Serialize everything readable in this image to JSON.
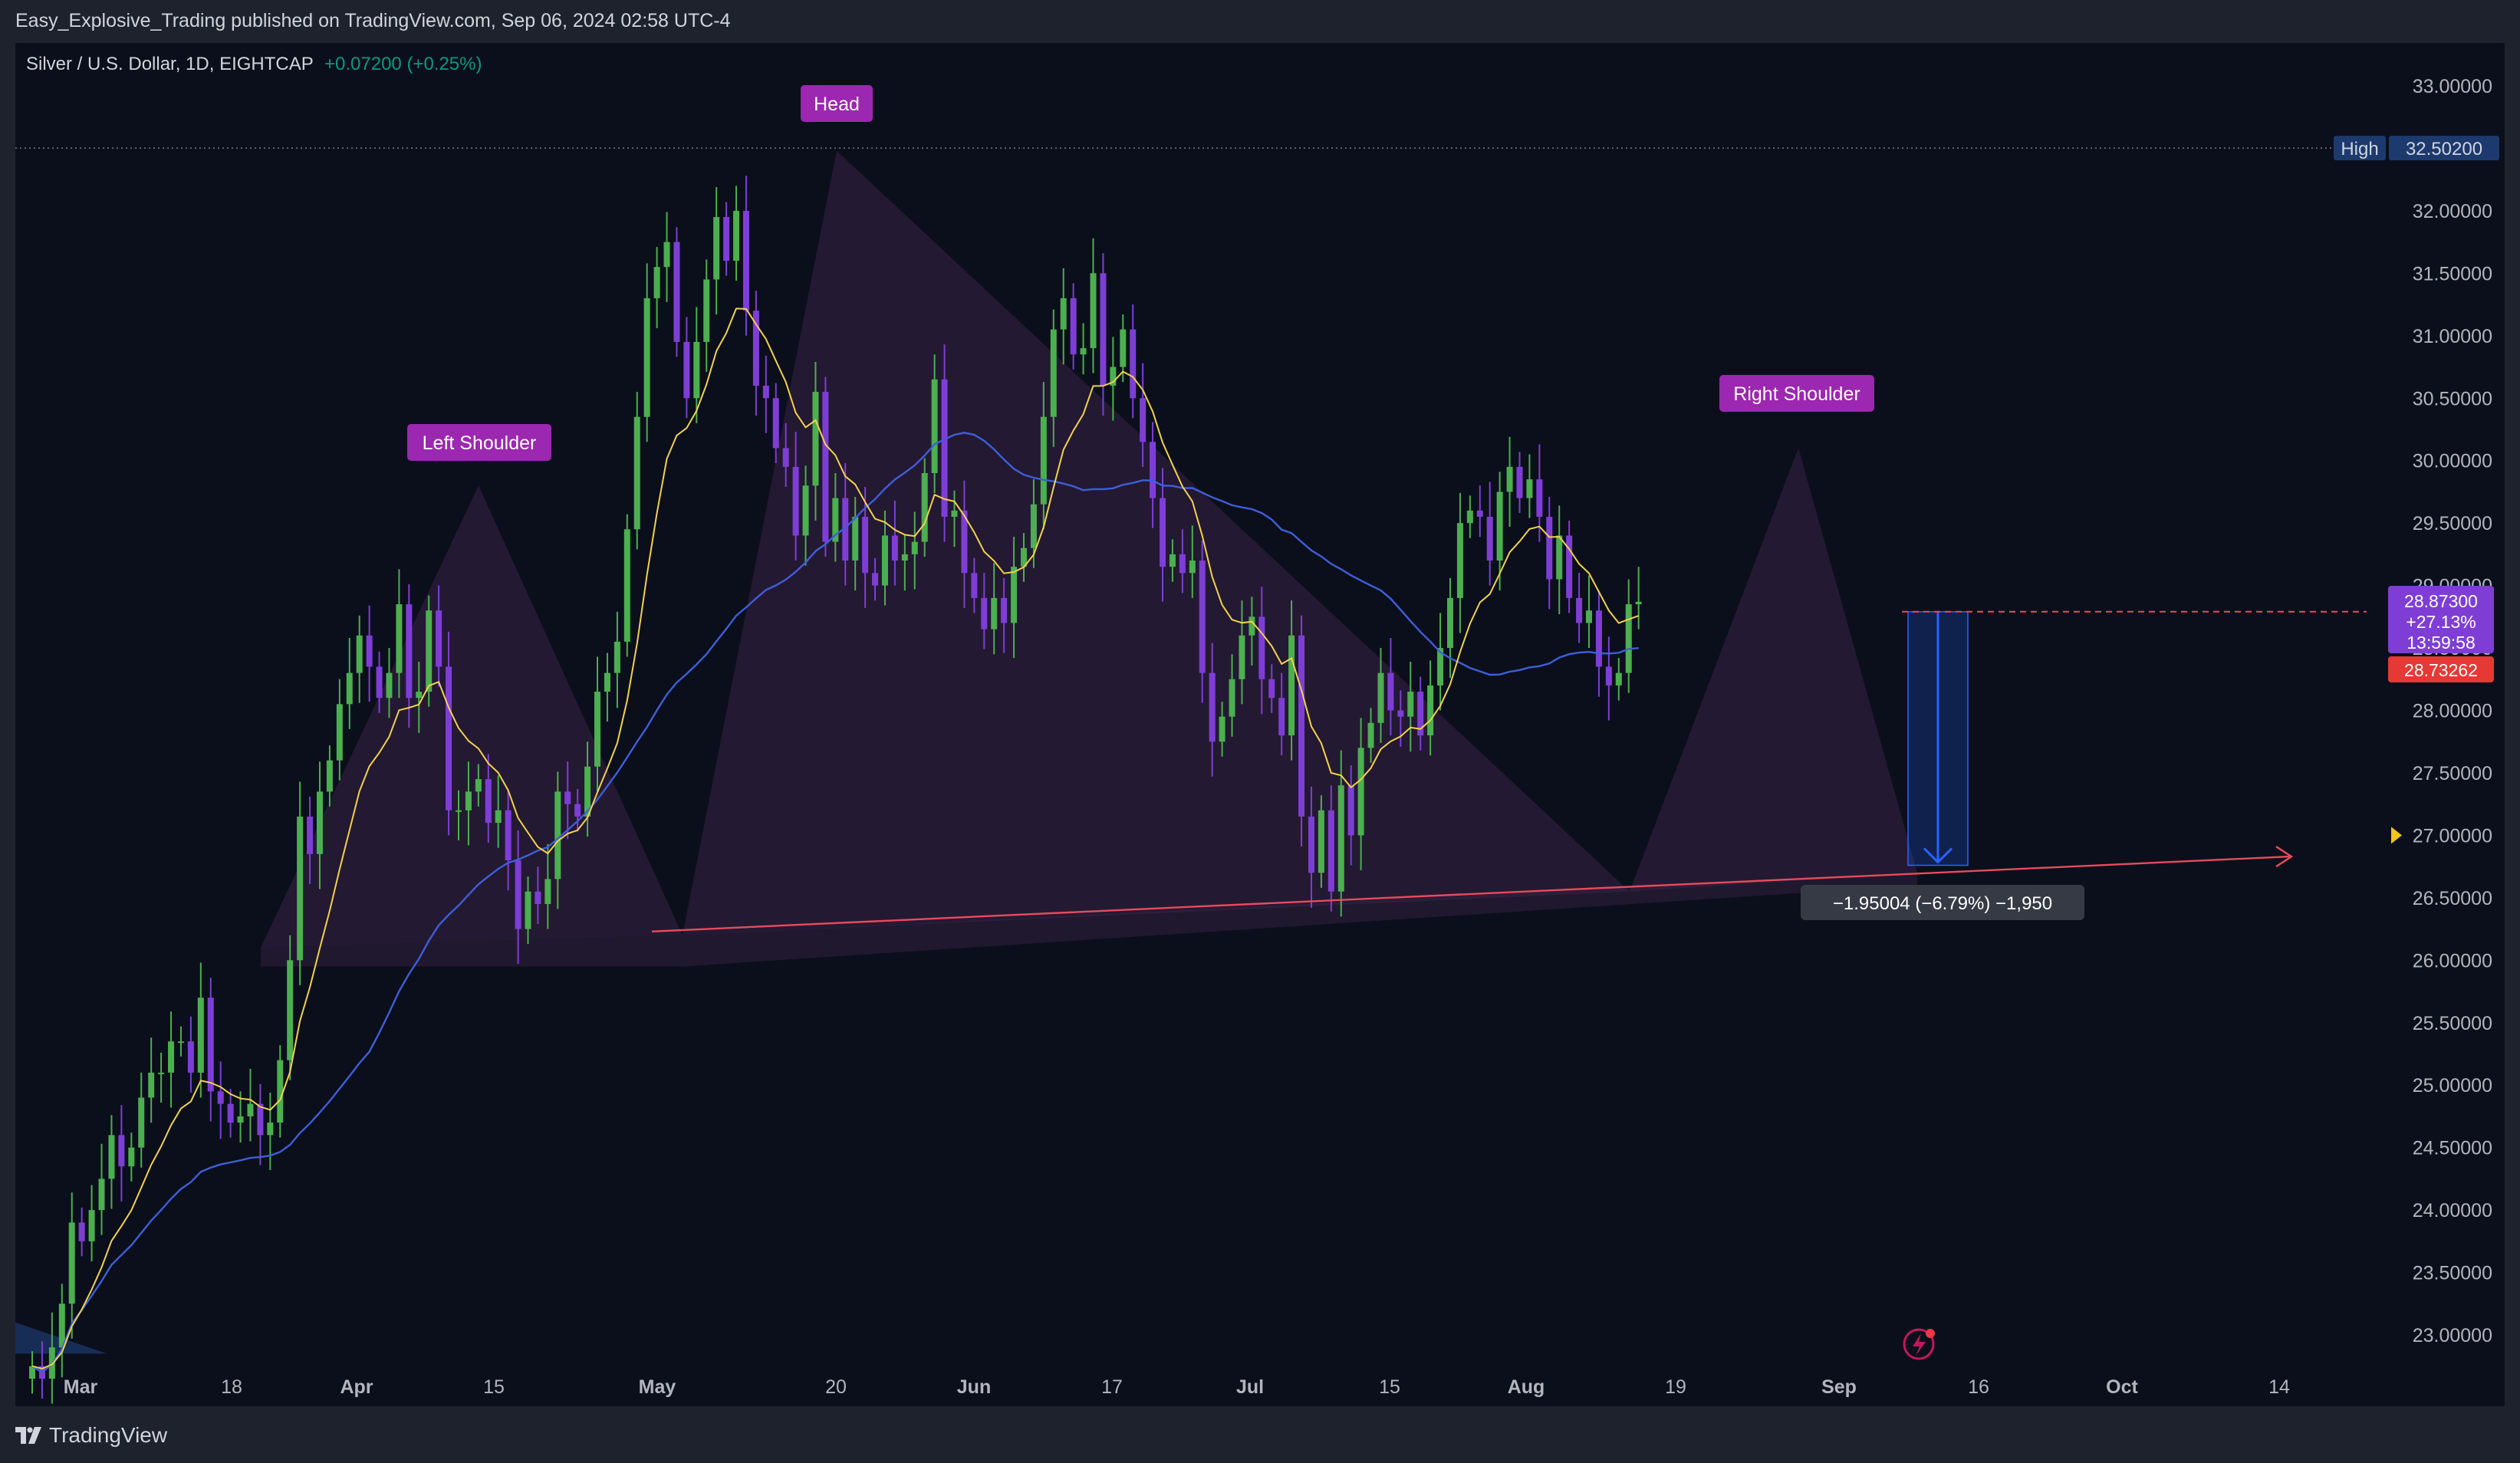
{
  "publisher": "Easy_Explosive_Trading published on TradingView.com, Sep 06, 2024 02:58 UTC-4",
  "legend": {
    "symbol": "Silver / U.S. Dollar, 1D, EIGHTCAP",
    "change": "+0.07200 (+0.25%)"
  },
  "brand": "TradingView",
  "colors": {
    "background": "#0b0f1b",
    "up_candle": "#4caf50",
    "down_candle": "#7e3ed6",
    "ema_short": "#f2d24b",
    "ema_long": "#3d5fd9",
    "neckline": "#e84b5c",
    "pattern_fill": "#3a2346",
    "label_bg": "#9c27b0",
    "projection": "#2962ff",
    "price_tag": "#7e3ed6",
    "countdown_tag": "#e53935",
    "high_tag": "#1c3a6e"
  },
  "chart_data": {
    "type": "candlestick",
    "ylim": [
      22.8,
      33.3
    ],
    "y_ticks": [
      "33.00000",
      "32.50000",
      "32.00000",
      "31.50000",
      "31.00000",
      "30.50000",
      "30.00000",
      "29.50000",
      "29.00000",
      "28.50000",
      "28.00000",
      "27.50000",
      "27.00000",
      "26.50000",
      "26.00000",
      "25.50000",
      "25.00000",
      "24.50000",
      "24.00000",
      "23.50000",
      "23.00000"
    ],
    "x_ticks": [
      "Mar",
      "18",
      "Apr",
      "15",
      "May",
      "20",
      "Jun",
      "17",
      "Jul",
      "15",
      "Aug",
      "19",
      "Sep",
      "16",
      "Oct",
      "14"
    ],
    "closes": [
      22.75,
      22.65,
      22.9,
      23.25,
      23.9,
      23.75,
      24.0,
      24.25,
      24.6,
      24.35,
      24.5,
      24.9,
      25.1,
      25.1,
      25.35,
      25.35,
      25.1,
      25.7,
      24.95,
      24.85,
      24.7,
      24.75,
      24.85,
      24.6,
      24.7,
      25.2,
      26.0,
      27.15,
      26.85,
      27.35,
      27.6,
      28.05,
      28.3,
      28.6,
      28.35,
      28.1,
      28.3,
      28.85,
      28.1,
      28.15,
      28.8,
      28.35,
      27.2,
      27.2,
      27.35,
      27.45,
      27.1,
      27.2,
      26.8,
      26.25,
      26.55,
      26.45,
      26.65,
      27.35,
      27.25,
      27.15,
      27.55,
      28.15,
      28.3,
      28.55,
      29.45,
      30.35,
      31.3,
      31.55,
      31.75,
      30.95,
      30.5,
      30.95,
      31.45,
      31.95,
      31.6,
      32.0,
      31.2,
      30.6,
      30.5,
      30.1,
      29.95,
      29.4,
      29.8,
      30.55,
      29.35,
      29.7,
      29.2,
      29.55,
      29.1,
      29.0,
      29.4,
      29.2,
      29.25,
      29.35,
      29.9,
      30.65,
      29.55,
      29.6,
      29.1,
      28.9,
      28.65,
      28.9,
      28.7,
      29.15,
      29.3,
      29.65,
      30.35,
      31.05,
      31.3,
      30.85,
      30.9,
      31.5,
      30.6,
      30.75,
      31.05,
      30.5,
      30.15,
      29.7,
      29.15,
      29.25,
      29.1,
      29.2,
      28.3,
      27.75,
      27.95,
      28.25,
      28.6,
      28.75,
      28.25,
      28.1,
      27.8,
      28.6,
      27.15,
      26.7,
      27.2,
      26.55,
      27.4,
      27.0,
      27.7,
      27.9,
      28.3,
      28.0,
      27.95,
      28.15,
      27.8,
      28.2,
      28.5,
      28.9,
      29.5,
      29.6,
      29.55,
      29.2,
      29.75,
      29.95,
      29.7,
      29.85,
      29.55,
      29.05,
      29.4,
      28.9,
      28.7,
      28.8,
      28.35,
      28.2,
      28.3,
      28.85,
      28.87
    ]
  },
  "annotations": {
    "left_shoulder": "Left Shoulder",
    "head": "Head",
    "right_shoulder": "Right Shoulder",
    "measure": "−1.95004 (−6.79%) −1,950"
  },
  "price_scale_tags": {
    "high_label": "High",
    "high_value": "32.50200",
    "current_price": "28.87300",
    "current_change": "+27.13%",
    "countdown": "13:59:58",
    "red_tag": "28.73262"
  }
}
